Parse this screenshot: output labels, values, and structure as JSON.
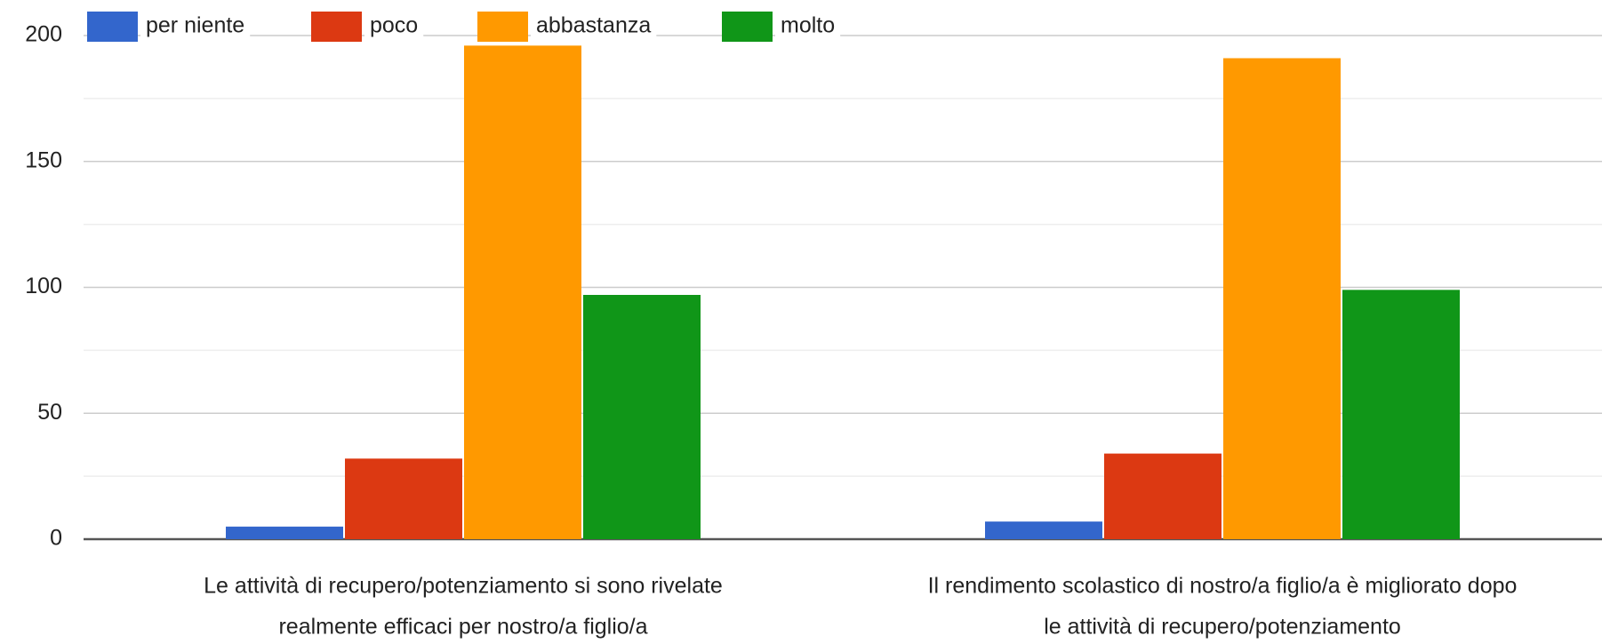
{
  "chart_data": {
    "type": "bar",
    "categories": [
      [
        "Le attività di recupero/potenziamento si sono rivelate",
        "realmente efficaci per nostro/a figlio/a"
      ],
      [
        "Il rendimento scolastico di nostro/a figlio/a è migliorato dopo",
        "le attività di recupero/potenziamento"
      ]
    ],
    "series": [
      {
        "name": "per niente",
        "color": "#3366cc",
        "values": [
          5,
          7
        ]
      },
      {
        "name": "poco",
        "color": "#dc3912",
        "values": [
          32,
          34
        ]
      },
      {
        "name": "abbastanza",
        "color": "#ff9900",
        "values": [
          196,
          191
        ]
      },
      {
        "name": "molto",
        "color": "#109618",
        "values": [
          97,
          99
        ]
      }
    ],
    "ylim": [
      0,
      200
    ],
    "yticks": [
      0,
      50,
      100,
      150,
      200
    ],
    "minor_yticks": [
      25,
      75,
      125,
      175
    ],
    "grid": true,
    "legend": "top"
  }
}
